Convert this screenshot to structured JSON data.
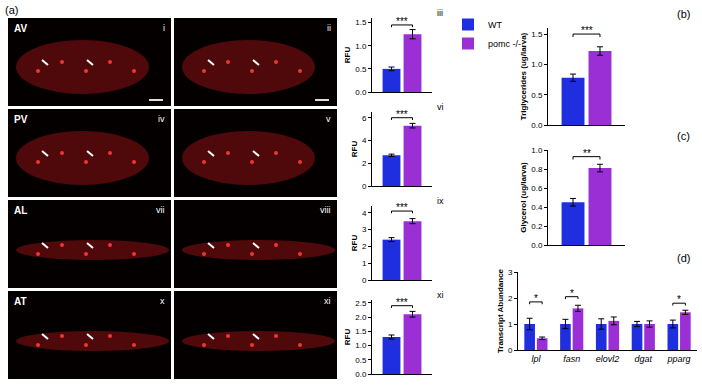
{
  "panel_a": {
    "label": "(a)",
    "rows": [
      {
        "region": "AV",
        "panels": [
          "i",
          "ii"
        ]
      },
      {
        "region": "PV",
        "panels": [
          "iv",
          "v"
        ]
      },
      {
        "region": "AL",
        "panels": [
          "vii",
          "viii"
        ]
      },
      {
        "region": "AT",
        "panels": [
          "x",
          "xi"
        ]
      }
    ]
  },
  "chart_data": [
    {
      "type": "bar",
      "panel": "iii",
      "y_label": "RFU",
      "categories": [
        null
      ],
      "series": [
        {
          "name": "WT",
          "color": "#1f2fe0",
          "values": [
            0.5
          ],
          "errors": [
            0.04
          ]
        },
        {
          "name": "pomc -/-",
          "color": "#9a2fd6",
          "values": [
            1.25
          ],
          "errors": [
            0.1
          ]
        }
      ],
      "ylim": [
        0,
        1.6
      ],
      "yticks": [
        {
          "value": 0,
          "label": "0.0"
        },
        {
          "value": 0.5,
          "label": "0.5"
        },
        {
          "value": 1,
          "label": "1.0"
        },
        {
          "value": 1.5,
          "label": "1.5"
        }
      ],
      "tick_labels": "y",
      "grid": false,
      "legend": "upper right",
      "annotations": [
        {
          "text": "***",
          "category": 0,
          "y": 1.45
        }
      ]
    },
    {
      "type": "bar",
      "panel": "vi",
      "y_label": "RFU",
      "categories": [
        null
      ],
      "series": [
        {
          "name": "WT",
          "color": "#1f2fe0",
          "values": [
            2.7
          ],
          "errors": [
            0.1
          ]
        },
        {
          "name": "pomc -/-",
          "color": "#9a2fd6",
          "values": [
            5.3
          ],
          "errors": [
            0.2
          ]
        }
      ],
      "ylim": [
        0,
        6.5
      ],
      "yticks": [
        0,
        2,
        4,
        6
      ],
      "tick_labels": "y",
      "grid": false,
      "annotations": [
        {
          "text": "***",
          "category": 0,
          "y": 6.0
        }
      ]
    },
    {
      "type": "bar",
      "panel": "ix",
      "y_label": "RFU",
      "categories": [
        null
      ],
      "series": [
        {
          "name": "WT",
          "color": "#1f2fe0",
          "values": [
            2.4
          ],
          "errors": [
            0.12
          ]
        },
        {
          "name": "pomc -/-",
          "color": "#9a2fd6",
          "values": [
            3.5
          ],
          "errors": [
            0.15
          ]
        }
      ],
      "ylim": [
        0,
        4.4
      ],
      "yticks": [
        0,
        1,
        2,
        3,
        4
      ],
      "tick_labels": "y",
      "grid": false,
      "annotations": [
        {
          "text": "***",
          "category": 0,
          "y": 4.1
        }
      ]
    },
    {
      "type": "bar",
      "panel": "xi",
      "y_label": "RFU",
      "categories": [
        null
      ],
      "series": [
        {
          "name": "WT",
          "color": "#1f2fe0",
          "values": [
            1.3
          ],
          "errors": [
            0.07
          ]
        },
        {
          "name": "pomc -/-",
          "color": "#9a2fd6",
          "values": [
            2.1
          ],
          "errors": [
            0.1
          ]
        }
      ],
      "ylim": [
        0,
        2.6
      ],
      "yticks": [
        {
          "value": 0,
          "label": "0.0"
        },
        {
          "value": 0.5,
          "label": "0.5"
        },
        {
          "value": 1,
          "label": "1.0"
        },
        {
          "value": 1.5,
          "label": "1.5"
        },
        {
          "value": 2,
          "label": "2.0"
        },
        {
          "value": 2.5,
          "label": "2.5"
        }
      ],
      "tick_labels": "y",
      "grid": false,
      "annotations": [
        {
          "text": "***",
          "category": 0,
          "y": 2.4
        }
      ]
    },
    {
      "type": "bar",
      "panel": "(b)",
      "y_label": "Triglycerides (ug/larva)",
      "categories": [
        null
      ],
      "series": [
        {
          "name": "WT",
          "color": "#1f2fe0",
          "values": [
            0.78
          ],
          "errors": [
            0.06
          ]
        },
        {
          "name": "pomc -/-",
          "color": "#9a2fd6",
          "values": [
            1.22
          ],
          "errors": [
            0.07
          ]
        }
      ],
      "ylim": [
        0,
        1.6
      ],
      "yticks": [
        {
          "value": 0,
          "label": "0.0"
        },
        {
          "value": 0.5,
          "label": "0.5"
        },
        {
          "value": 1,
          "label": "1.0"
        },
        {
          "value": 1.5,
          "label": "1.5"
        }
      ],
      "tick_labels": "y",
      "grid": false,
      "annotations": [
        {
          "text": "***",
          "category": 0,
          "y": 1.5
        }
      ]
    },
    {
      "type": "bar",
      "panel": "(c)",
      "y_label": "Glycerol (ug/larva)",
      "categories": [
        null
      ],
      "series": [
        {
          "name": "WT",
          "color": "#1f2fe0",
          "values": [
            0.45
          ],
          "errors": [
            0.04
          ]
        },
        {
          "name": "pomc -/-",
          "color": "#9a2fd6",
          "values": [
            0.81
          ],
          "errors": [
            0.04
          ]
        }
      ],
      "ylim": [
        0,
        1.0
      ],
      "yticks": [
        {
          "value": 0,
          "label": "0.0"
        },
        {
          "value": 0.2,
          "label": "0.2"
        },
        {
          "value": 0.4,
          "label": "0.4"
        },
        {
          "value": 0.6,
          "label": "0.6"
        },
        {
          "value": 0.8,
          "label": "0.8"
        },
        {
          "value": 1,
          "label": "1.0"
        }
      ],
      "tick_labels": "y",
      "grid": false,
      "annotations": [
        {
          "text": "**",
          "category": 0,
          "y": 0.93
        }
      ]
    },
    {
      "type": "bar",
      "panel": "(d)",
      "y_label": "Transcript Abundance",
      "categories": [
        "lpl",
        "fasn",
        "elovl2",
        "dgat",
        "pparg"
      ],
      "series": [
        {
          "name": "WT",
          "color": "#1f2fe0",
          "values": [
            1.0,
            1.0,
            1.0,
            1.0,
            1.0
          ],
          "errors": [
            0.22,
            0.18,
            0.2,
            0.1,
            0.15
          ]
        },
        {
          "name": "pomc -/-",
          "color": "#9a2fd6",
          "values": [
            0.45,
            1.6,
            1.12,
            1.0,
            1.45
          ],
          "errors": [
            0.05,
            0.12,
            0.15,
            0.12,
            0.08
          ]
        }
      ],
      "ylim": [
        0,
        3
      ],
      "yticks": [
        0,
        1,
        2,
        3
      ],
      "grid": false,
      "annotations": [
        {
          "text": "*",
          "category": 0,
          "y": 1.85
        },
        {
          "text": "*",
          "category": 1,
          "y": 2.05
        },
        {
          "text": "*",
          "category": 4,
          "y": 1.8
        }
      ]
    }
  ]
}
